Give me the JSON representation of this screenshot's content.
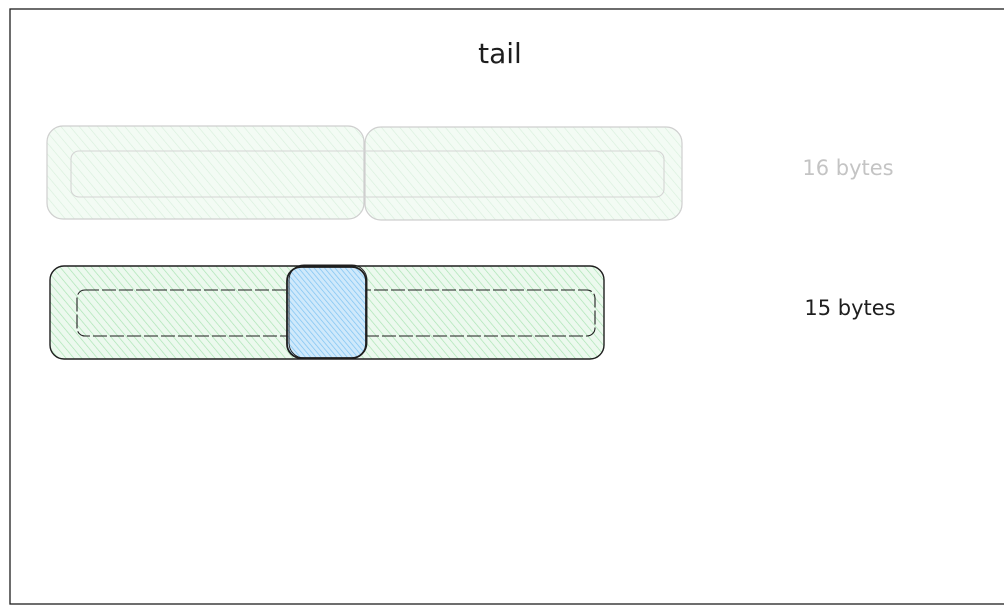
{
  "title": "tail",
  "rows": [
    {
      "label": "16 bytes",
      "faded": true,
      "segments": 2
    },
    {
      "label": "15 bytes",
      "faded": false,
      "segments": 1,
      "highlight": true
    }
  ],
  "colors": {
    "frame": "#1e1e1e",
    "text": "#1e1e1e",
    "faded_stroke": "#cfcfcf",
    "faded_text": "#c4c4c4",
    "green_fill": "#b2f2bb",
    "green_fill_faded": "#e9f8ec",
    "blue_fill": "#a5d8ff",
    "hatch_green": "#8fdc9c",
    "hatch_blue": "#74c0fc"
  }
}
